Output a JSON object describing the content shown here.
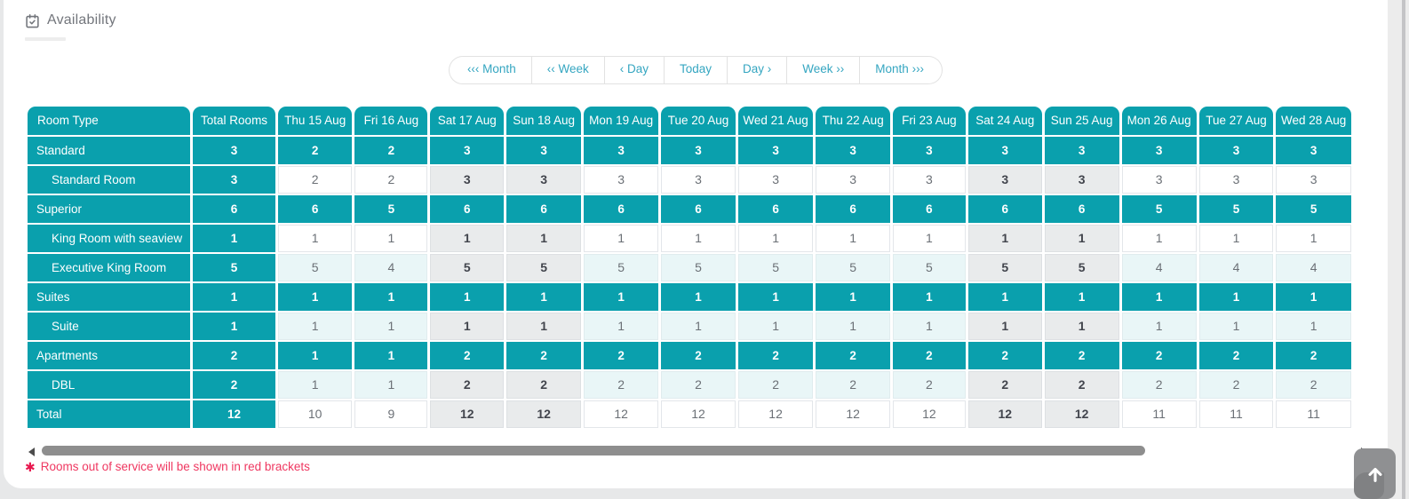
{
  "page": {
    "title": "Availability"
  },
  "toolbar": {
    "buttons": [
      "‹‹‹ Month",
      "‹‹ Week",
      "‹ Day",
      "Today",
      "Day ›",
      "Week ››",
      "Month ›››"
    ]
  },
  "table": {
    "headers": [
      "Room Type",
      "Total Rooms"
    ],
    "day_headers": [
      "Thu 15 Aug",
      "Fri 16 Aug",
      "Sat 17 Aug",
      "Sun 18 Aug",
      "Mon 19 Aug",
      "Tue 20 Aug",
      "Wed 21 Aug",
      "Thu 22 Aug",
      "Fri 23 Aug",
      "Sat 24 Aug",
      "Sun 25 Aug",
      "Mon 26 Aug",
      "Tue 27 Aug",
      "Wed 28 Aug"
    ],
    "weekend_columns": [
      2,
      3,
      9,
      10
    ],
    "rows": [
      {
        "label": "Standard",
        "type": "category",
        "stripe": false,
        "total": "3",
        "values": [
          "2",
          "2",
          "3",
          "3",
          "3",
          "3",
          "3",
          "3",
          "3",
          "3",
          "3",
          "3",
          "3",
          "3"
        ]
      },
      {
        "label": "Standard Room",
        "type": "room",
        "stripe": false,
        "total": "3",
        "values": [
          "2",
          "2",
          "3",
          "3",
          "3",
          "3",
          "3",
          "3",
          "3",
          "3",
          "3",
          "3",
          "3",
          "3"
        ]
      },
      {
        "label": "Superior",
        "type": "category",
        "stripe": false,
        "total": "6",
        "values": [
          "6",
          "5",
          "6",
          "6",
          "6",
          "6",
          "6",
          "6",
          "6",
          "6",
          "6",
          "5",
          "5",
          "5"
        ]
      },
      {
        "label": "King Room with seaview",
        "type": "room",
        "stripe": false,
        "total": "1",
        "values": [
          "1",
          "1",
          "1",
          "1",
          "1",
          "1",
          "1",
          "1",
          "1",
          "1",
          "1",
          "1",
          "1",
          "1"
        ]
      },
      {
        "label": "Executive King Room",
        "type": "room",
        "stripe": true,
        "total": "5",
        "values": [
          "5",
          "4",
          "5",
          "5",
          "5",
          "5",
          "5",
          "5",
          "5",
          "5",
          "5",
          "4",
          "4",
          "4"
        ]
      },
      {
        "label": "Suites",
        "type": "category",
        "stripe": false,
        "total": "1",
        "values": [
          "1",
          "1",
          "1",
          "1",
          "1",
          "1",
          "1",
          "1",
          "1",
          "1",
          "1",
          "1",
          "1",
          "1"
        ]
      },
      {
        "label": "Suite",
        "type": "room",
        "stripe": true,
        "total": "1",
        "values": [
          "1",
          "1",
          "1",
          "1",
          "1",
          "1",
          "1",
          "1",
          "1",
          "1",
          "1",
          "1",
          "1",
          "1"
        ]
      },
      {
        "label": "Apartments",
        "type": "category",
        "stripe": false,
        "total": "2",
        "values": [
          "1",
          "1",
          "2",
          "2",
          "2",
          "2",
          "2",
          "2",
          "2",
          "2",
          "2",
          "2",
          "2",
          "2"
        ]
      },
      {
        "label": "DBL",
        "type": "room",
        "stripe": true,
        "total": "2",
        "values": [
          "1",
          "1",
          "2",
          "2",
          "2",
          "2",
          "2",
          "2",
          "2",
          "2",
          "2",
          "2",
          "2",
          "2"
        ]
      },
      {
        "label": "Total",
        "type": "total",
        "stripe": false,
        "total": "12",
        "values": [
          "10",
          "9",
          "12",
          "12",
          "12",
          "12",
          "12",
          "12",
          "12",
          "12",
          "12",
          "11",
          "11",
          "11"
        ]
      }
    ]
  },
  "footnote": {
    "icon": "✱",
    "text": "Rooms out of service will be shown in red brackets"
  },
  "colors": {
    "teal": "#0aa0ad",
    "stripe": "#e9f6f7",
    "weekend": "#e9ebec",
    "toolbar_text": "#35a6c1",
    "note_red": "#ef3760"
  }
}
